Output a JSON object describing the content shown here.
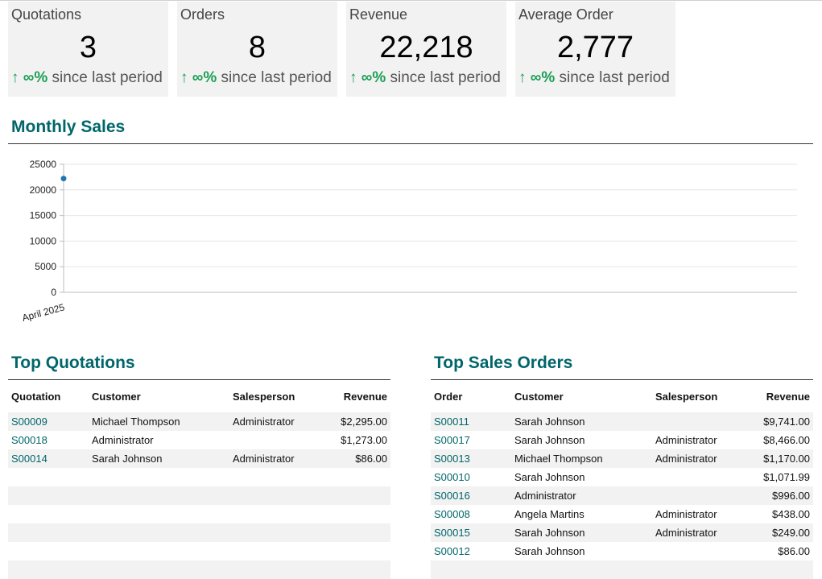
{
  "kpis": [
    {
      "label": "Quotations",
      "value": "3",
      "trend_arrow": "↑",
      "trend_pct": "∞%",
      "trend_text": "since last period"
    },
    {
      "label": "Orders",
      "value": "8",
      "trend_arrow": "↑",
      "trend_pct": "∞%",
      "trend_text": "since last period"
    },
    {
      "label": "Revenue",
      "value": "22,218",
      "trend_arrow": "↑",
      "trend_pct": "∞%",
      "trend_text": "since last period"
    },
    {
      "label": "Average Order",
      "value": "2,777",
      "trend_arrow": "↑",
      "trend_pct": "∞%",
      "trend_text": "since last period"
    }
  ],
  "monthly_sales": {
    "title": "Monthly Sales"
  },
  "chart_data": {
    "type": "line",
    "title": "",
    "categories": [
      "April 2025"
    ],
    "series": [
      {
        "values": [
          22218
        ]
      }
    ],
    "ylim": [
      0,
      25000
    ],
    "yticks": [
      0,
      5000,
      10000,
      15000,
      20000,
      25000
    ],
    "grid": true,
    "legend": "none",
    "color": "#1f77b4"
  },
  "top_quotations": {
    "title": "Top Quotations",
    "columns": [
      "Quotation",
      "Customer",
      "Salesperson",
      "Revenue"
    ],
    "rows": [
      [
        "S00009",
        "Michael Thompson",
        "Administrator",
        "$2,295.00"
      ],
      [
        "S00018",
        "Administrator",
        "",
        "$1,273.00"
      ],
      [
        "S00014",
        "Sarah Johnson",
        "Administrator",
        "$86.00"
      ],
      [
        "",
        "",
        "",
        ""
      ],
      [
        "",
        "",
        "",
        ""
      ],
      [
        "",
        "",
        "",
        ""
      ],
      [
        "",
        "",
        "",
        ""
      ],
      [
        "",
        "",
        "",
        ""
      ],
      [
        "",
        "",
        "",
        ""
      ]
    ]
  },
  "top_sales_orders": {
    "title": "Top Sales Orders",
    "columns": [
      "Order",
      "Customer",
      "Salesperson",
      "Revenue"
    ],
    "rows": [
      [
        "S00011",
        "Sarah Johnson",
        "",
        "$9,741.00"
      ],
      [
        "S00017",
        "Sarah Johnson",
        "Administrator",
        "$8,466.00"
      ],
      [
        "S00013",
        "Michael Thompson",
        "Administrator",
        "$1,170.00"
      ],
      [
        "S00010",
        "Sarah Johnson",
        "",
        "$1,071.99"
      ],
      [
        "S00016",
        "Administrator",
        "",
        "$996.00"
      ],
      [
        "S00008",
        "Angela Martins",
        "Administrator",
        "$438.00"
      ],
      [
        "S00015",
        "Sarah Johnson",
        "Administrator",
        "$249.00"
      ],
      [
        "S00012",
        "Sarah Johnson",
        "",
        "$86.00"
      ],
      [
        "",
        "",
        "",
        ""
      ]
    ]
  }
}
